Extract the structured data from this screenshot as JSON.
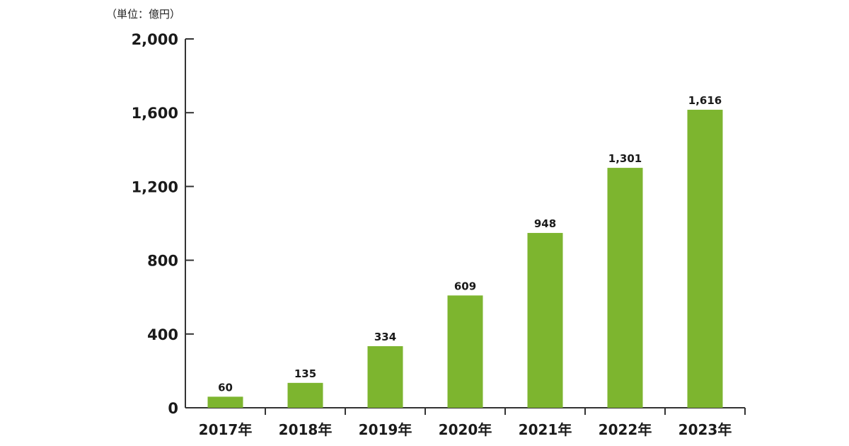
{
  "chart_data": {
    "type": "bar",
    "unit_label": "（単位：億円）",
    "categories": [
      "2017年",
      "2018年",
      "2019年",
      "2020年",
      "2021年",
      "2022年",
      "2023年"
    ],
    "values": [
      60,
      135,
      334,
      609,
      948,
      1301,
      1616
    ],
    "value_labels": [
      "60",
      "135",
      "334",
      "609",
      "948",
      "1,301",
      "1,616"
    ],
    "ylim": [
      0,
      2000
    ],
    "yticks": [
      0,
      400,
      800,
      1200,
      1600,
      2000
    ],
    "ytick_labels": [
      "0",
      "400",
      "800",
      "1,200",
      "1,600",
      "2,000"
    ],
    "bar_color": "#7db52f",
    "axis_color": "#333333",
    "grid": false,
    "legend": "none"
  }
}
